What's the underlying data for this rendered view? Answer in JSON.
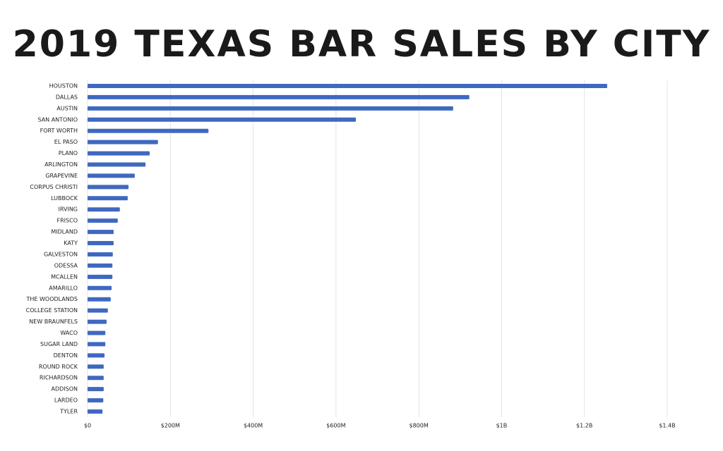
{
  "chart_data": {
    "type": "barh",
    "title": "2019 TEXAS BAR SALES BY CITY",
    "categories": [
      "HOUSTON",
      "DALLAS",
      "AUSTIN",
      "SAN ANTONIO",
      "FORT WORTH",
      "EL PASO",
      "PLANO",
      "ARLINGTON",
      "GRAPEVINE",
      "CORPUS CHRISTI",
      "LUBBOCK",
      "IRVING",
      "FRISCO",
      "MIDLAND",
      "KATY",
      "GALVESTON",
      "ODESSA",
      "MCALLEN",
      "AMARILLO",
      "THE WOODLANDS",
      "COLLEGE STATION",
      "NEW BRAUNFELS",
      "WACO",
      "SUGAR LAND",
      "DENTON",
      "ROUND ROCK",
      "RICHARDSON",
      "ADDISON",
      "LARDEO",
      "TYLER"
    ],
    "values": [
      1255000000,
      922000000,
      883000000,
      648000000,
      292000000,
      170000000,
      150000000,
      140000000,
      114000000,
      99000000,
      97000000,
      78000000,
      73000000,
      63000000,
      63000000,
      61000000,
      60000000,
      60000000,
      58000000,
      56000000,
      49000000,
      46000000,
      43000000,
      43000000,
      41000000,
      39000000,
      39000000,
      39000000,
      38000000,
      36000000
    ],
    "color": "#3f68c0",
    "xlim": [
      0,
      1400000000
    ],
    "xticks": [
      {
        "value": 0,
        "label": "$0"
      },
      {
        "value": 200000000,
        "label": "$200M"
      },
      {
        "value": 400000000,
        "label": "$400M"
      },
      {
        "value": 600000000,
        "label": "$600M"
      },
      {
        "value": 800000000,
        "label": "$800M"
      },
      {
        "value": 1000000000,
        "label": "$1B"
      },
      {
        "value": 1200000000,
        "label": "$1.2B"
      },
      {
        "value": 1400000000,
        "label": "$1.4B"
      }
    ],
    "grid": true
  }
}
